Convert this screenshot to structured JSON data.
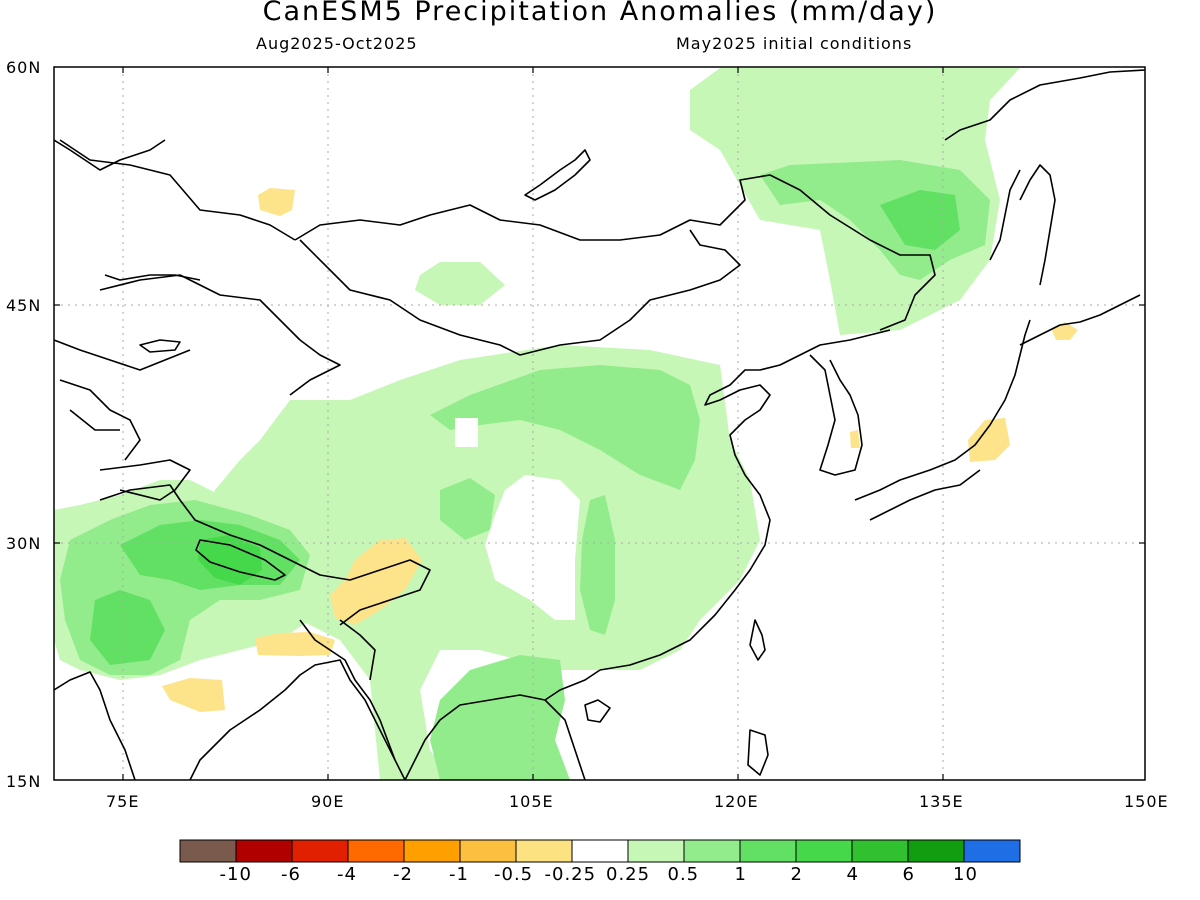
{
  "title": "CanESM5 Precipitation Anomalies (mm/day)",
  "subtitle_left": "Aug2025-Oct2025",
  "subtitle_right": "May2025 initial conditions",
  "lat_ticks": [
    "60N",
    "45N",
    "30N",
    "15N"
  ],
  "lon_ticks": [
    "75E",
    "90E",
    "105E",
    "120E",
    "135E",
    "150E"
  ],
  "colors": {
    "land_line": "#000000",
    "grid": "#aaaaaa",
    "light_green": "#c6f7b6",
    "mid_green": "#92ec8c",
    "green": "#62e064",
    "bright_green": "#44d84a",
    "light_yellow": "#fde38a",
    "yellow": "#fcc85a"
  },
  "colorbar": {
    "colors": [
      "#7b5a4e",
      "#b00000",
      "#e02000",
      "#ff6a00",
      "#ffa000",
      "#fcc040",
      "#fde282",
      "#ffffff",
      "#c6f7b6",
      "#92ec8c",
      "#62e064",
      "#44d84a",
      "#30c030",
      "#109e10",
      "#1e6ee6"
    ],
    "labels": [
      "-10",
      "-6",
      "-4",
      "-2",
      "-1",
      "-0.5",
      "-0.25",
      "0.25",
      "0.5",
      "1",
      "2",
      "4",
      "6",
      "10"
    ]
  }
}
